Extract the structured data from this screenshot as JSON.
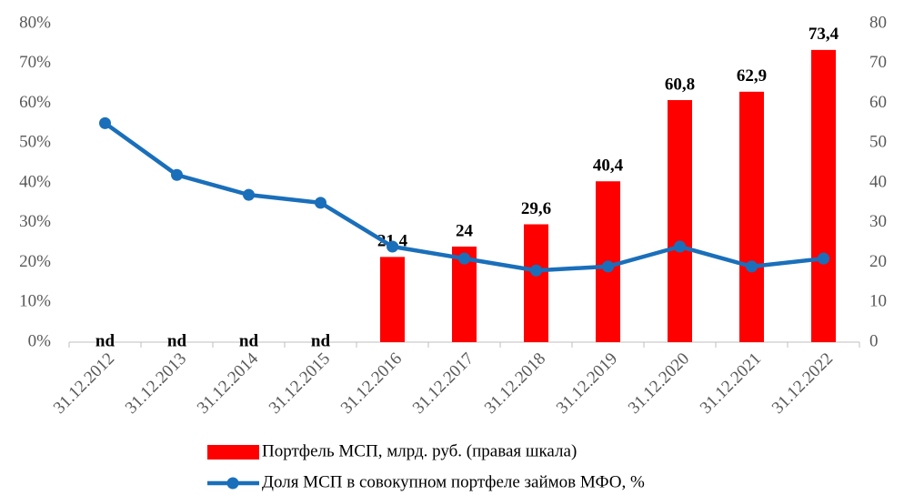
{
  "chart_data": {
    "type": "combo",
    "categories": [
      "31.12.2012",
      "31.12.2013",
      "31.12.2014",
      "31.12.2015",
      "31.12.2016",
      "31.12.2017",
      "31.12.2018",
      "31.12.2019",
      "31.12.2020",
      "31.12.2021",
      "31.12.2022"
    ],
    "series": [
      {
        "name": "Портфель МСП, млрд. руб. (правая шкала)",
        "type": "bar",
        "axis": "y2",
        "color": "#ff0000",
        "values": [
          null,
          null,
          null,
          null,
          21.4,
          24,
          29.6,
          40.4,
          60.8,
          62.9,
          73.4
        ],
        "value_labels": [
          "nd",
          "nd",
          "nd",
          "nd",
          "21,4",
          "24",
          "29,6",
          "40,4",
          "60,8",
          "62,9",
          "73,4"
        ]
      },
      {
        "name": "Доля МСП в совокупном портфеле займов МФО, %",
        "type": "line",
        "axis": "y",
        "color": "#1a6fba",
        "values": [
          55,
          42,
          37,
          35,
          24,
          21,
          18,
          19,
          24,
          19,
          21
        ]
      }
    ],
    "ylim": [
      0,
      80
    ],
    "yticks": [
      {
        "value": 0,
        "label": "0%"
      },
      {
        "value": 10,
        "label": "10%"
      },
      {
        "value": 20,
        "label": "20%"
      },
      {
        "value": 30,
        "label": "30%"
      },
      {
        "value": 40,
        "label": "40%"
      },
      {
        "value": 50,
        "label": "50%"
      },
      {
        "value": 60,
        "label": "60%"
      },
      {
        "value": 70,
        "label": "70%"
      },
      {
        "value": 80,
        "label": "80%"
      }
    ],
    "y2lim": [
      0,
      80
    ],
    "y2ticks": [
      0,
      10,
      20,
      30,
      40,
      50,
      60,
      70,
      80
    ],
    "legend": "bottom"
  }
}
